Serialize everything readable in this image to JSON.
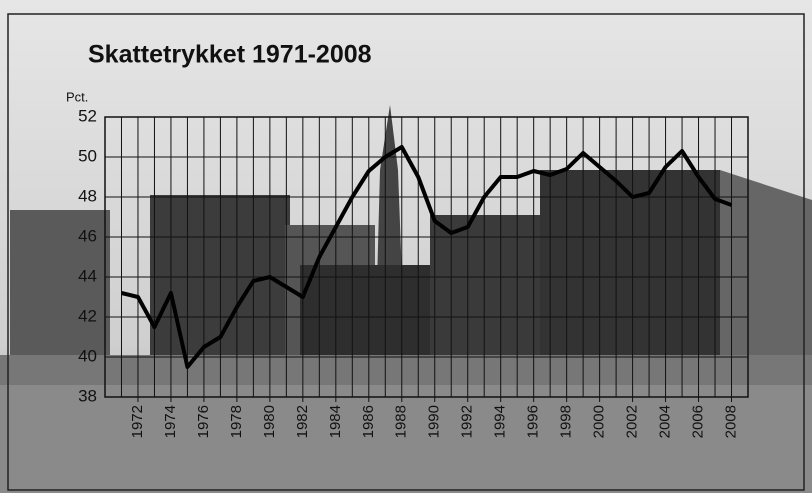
{
  "chart_data": {
    "type": "line",
    "title": "Skattetrykket 1971-2008",
    "y_label": "Pct.",
    "x": [
      1971,
      1972,
      1973,
      1974,
      1975,
      1976,
      1977,
      1978,
      1979,
      1980,
      1981,
      1982,
      1983,
      1984,
      1985,
      1986,
      1987,
      1988,
      1989,
      1990,
      1991,
      1992,
      1993,
      1994,
      1995,
      1996,
      1997,
      1998,
      1999,
      2000,
      2001,
      2002,
      2003,
      2004,
      2005,
      2006,
      2007,
      2008
    ],
    "series": [
      {
        "name": null,
        "color": "#000000",
        "values": [
          43.2,
          43.0,
          41.5,
          43.2,
          39.5,
          40.5,
          41.0,
          42.5,
          43.8,
          44.0,
          43.5,
          43.0,
          45.0,
          46.5,
          48.0,
          49.3,
          50.0,
          50.5,
          49.0,
          46.8,
          46.2,
          46.5,
          48.0,
          49.0,
          49.0,
          49.3,
          49.1,
          49.4,
          50.2,
          49.5,
          48.8,
          48.0,
          48.2,
          49.5,
          50.3,
          49.0,
          47.9,
          47.6
        ]
      }
    ],
    "xlim": [
      1970,
      2009
    ],
    "xticks": [
      1972,
      1974,
      1976,
      1978,
      1980,
      1982,
      1984,
      1986,
      1988,
      1990,
      1992,
      1994,
      1996,
      1998,
      2000,
      2002,
      2004,
      2006,
      2008
    ],
    "ylim": [
      38,
      52
    ],
    "yticks": [
      38,
      40,
      42,
      44,
      46,
      48,
      50,
      52
    ],
    "grid": true
  }
}
